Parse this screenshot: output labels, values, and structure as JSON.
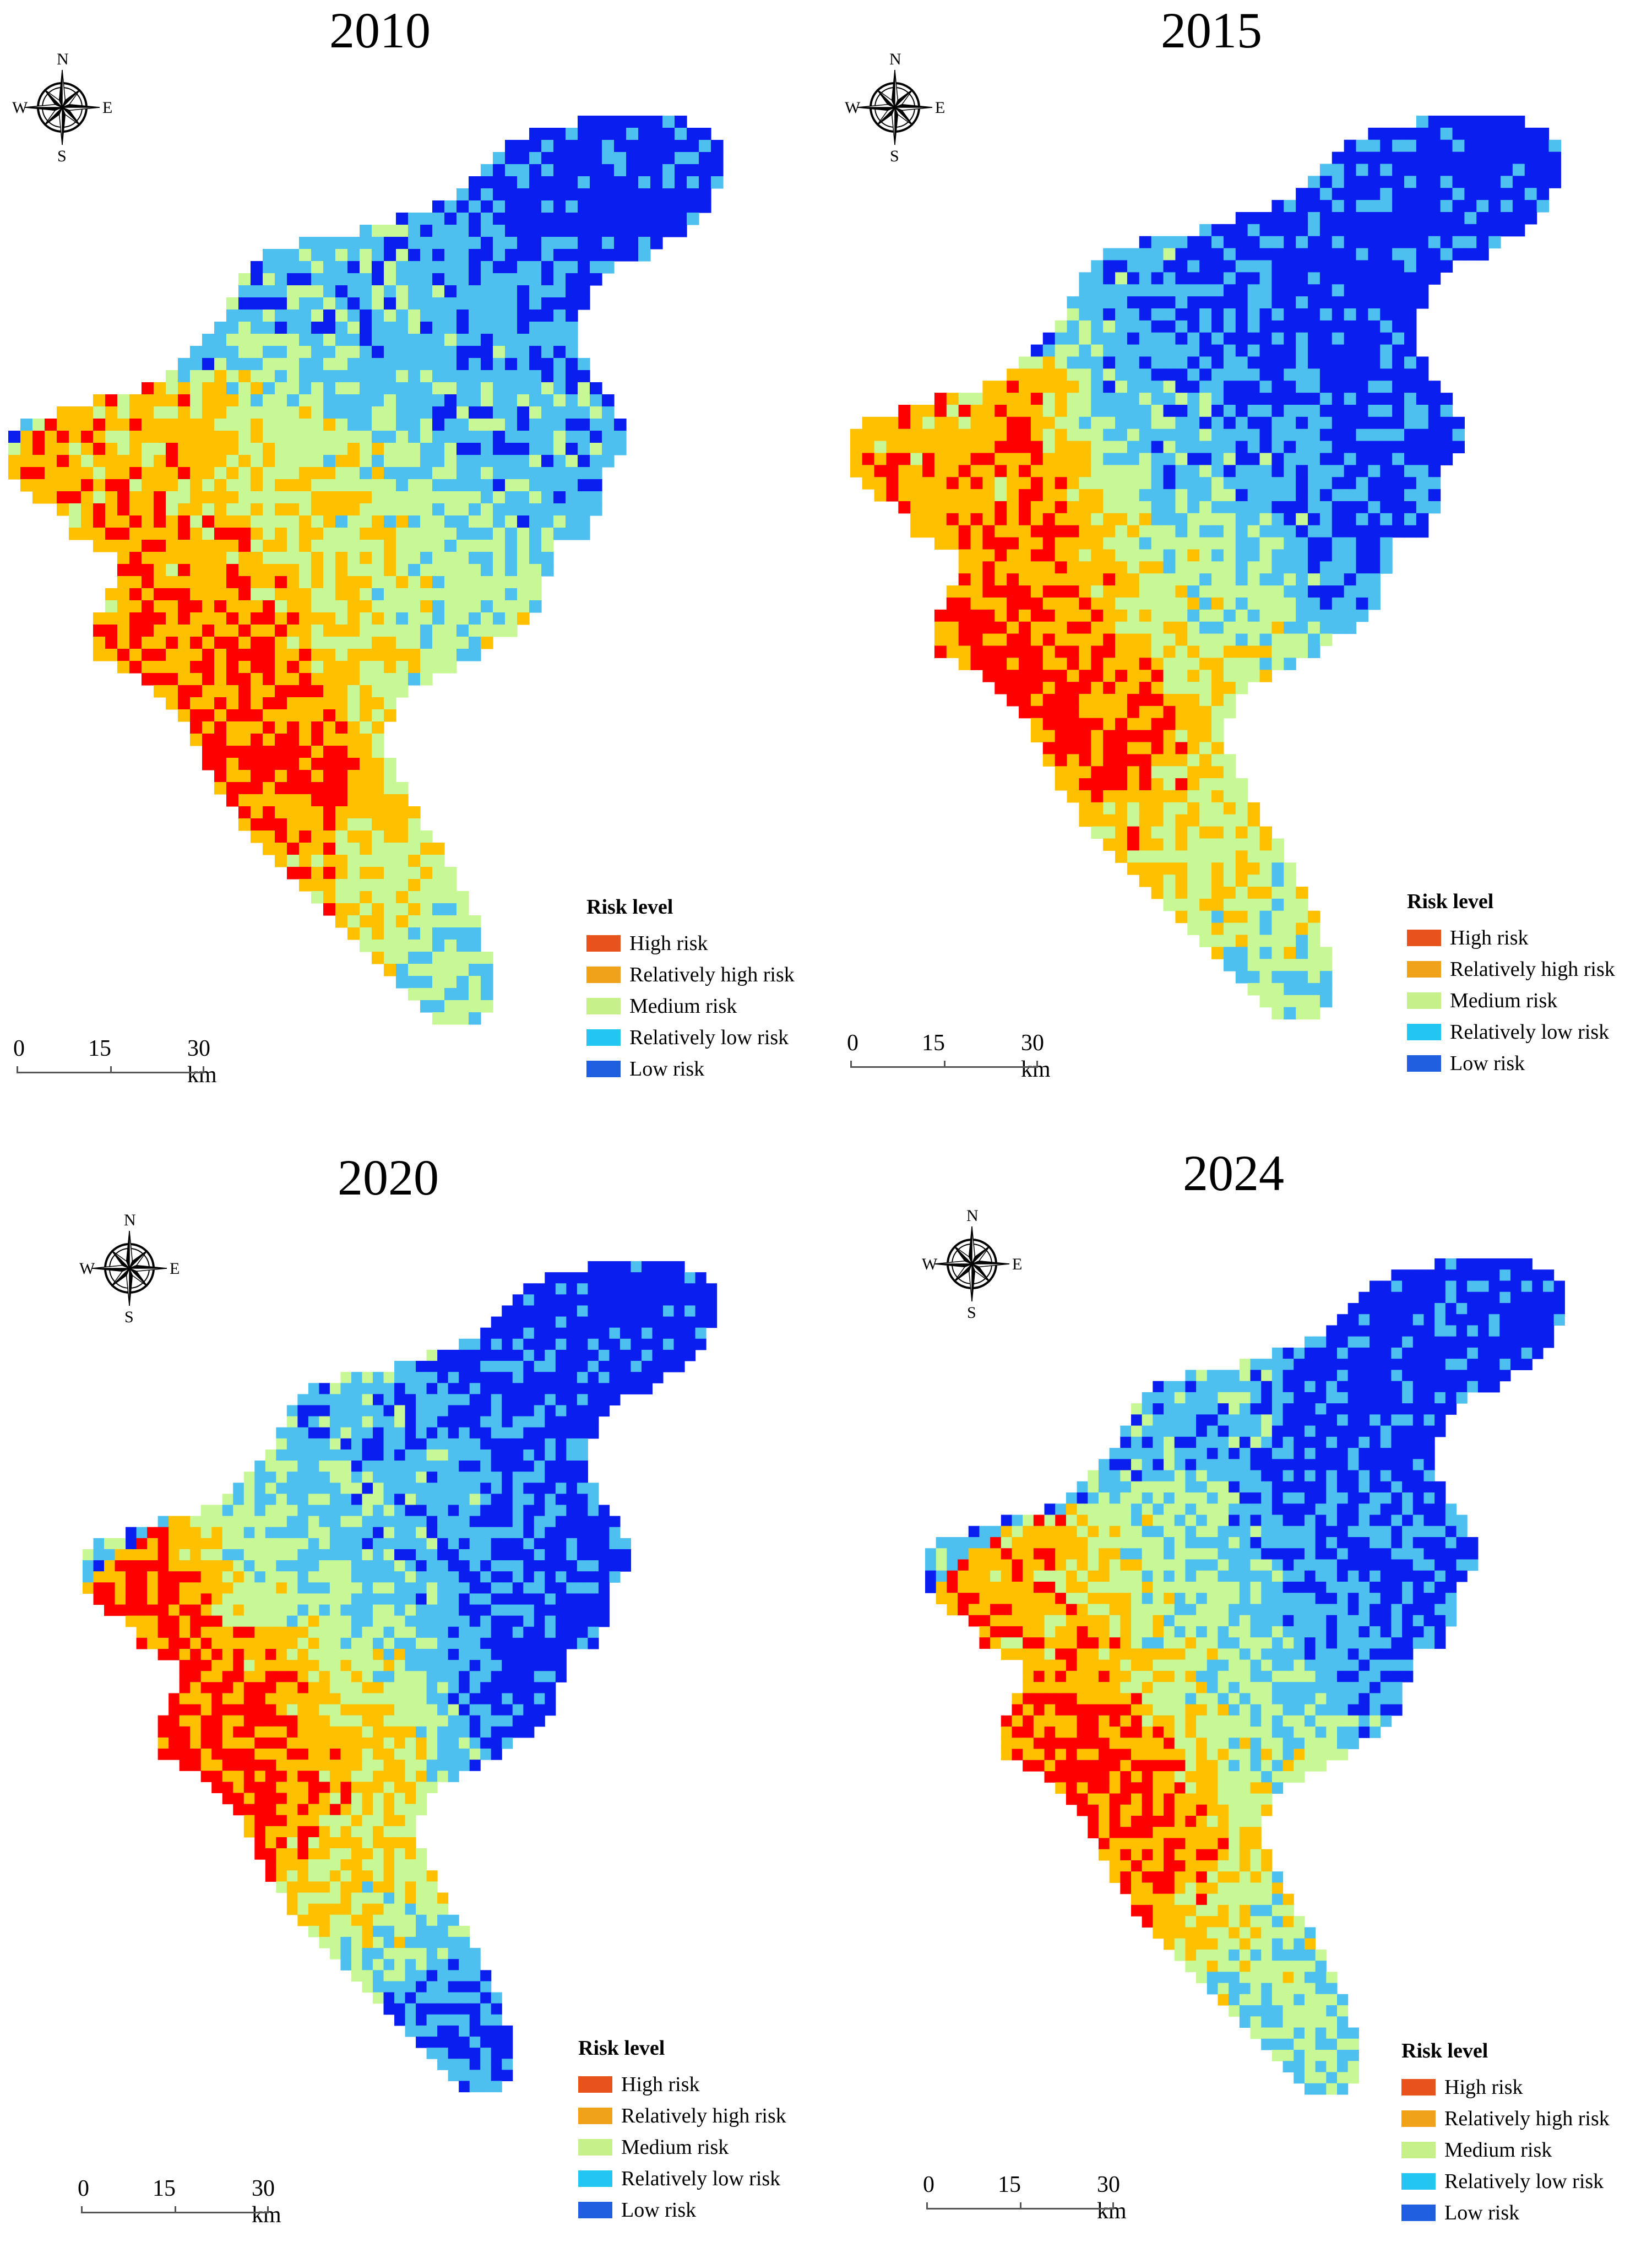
{
  "legend": {
    "title": "Risk level",
    "items": [
      {
        "label": "High risk",
        "color": "#e8521c"
      },
      {
        "label": "Relatively high risk",
        "color": "#f0a21a"
      },
      {
        "label": "Medium risk",
        "color": "#c6f08a"
      },
      {
        "label": "Relatively low risk",
        "color": "#22c6f0"
      },
      {
        "label": "Low risk",
        "color": "#1f5fe0"
      }
    ]
  },
  "map_colors": {
    "high": "#ff0000",
    "relatively_high": "#ffc000",
    "medium": "#c8f796",
    "relatively_low": "#4ec0f0",
    "low": "#0a1ef0"
  },
  "compass": {
    "n": "N",
    "s": "S",
    "e": "E",
    "w": "W"
  },
  "scale": {
    "zero": "0",
    "mid": "15",
    "end": "30 km"
  },
  "panels": [
    {
      "year": "2010"
    },
    {
      "year": "2015"
    },
    {
      "year": "2020"
    },
    {
      "year": "2024"
    }
  ]
}
